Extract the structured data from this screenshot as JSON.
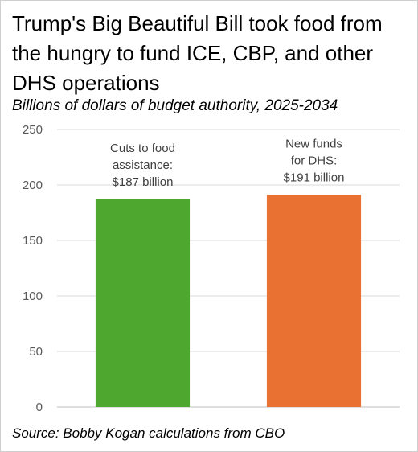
{
  "chart_data": {
    "type": "bar",
    "title": "Trump's Big Beautiful Bill took food from the hungry to fund ICE, CBP, and other DHS operations",
    "subtitle": "Billions of dollars of budget authority, 2025-2034",
    "source": "Source: Bobby Kogan calculations from CBO",
    "categories": [
      "Cuts to food assistance",
      "New funds for DHS"
    ],
    "values": [
      187,
      191
    ],
    "colors": [
      "#4EA72E",
      "#E97132"
    ],
    "data_labels": [
      [
        "Cuts to food",
        "assistance:",
        "$187 billion"
      ],
      [
        "New funds",
        "for DHS:",
        "$191 billion"
      ]
    ],
    "ylim": [
      0,
      250
    ],
    "yticks": [
      0,
      50,
      100,
      150,
      200,
      250
    ],
    "grid": true,
    "legend": false,
    "xlabel": "",
    "ylabel": ""
  }
}
